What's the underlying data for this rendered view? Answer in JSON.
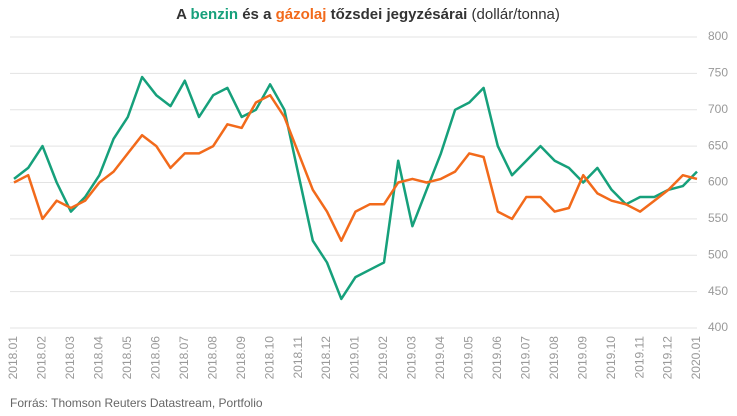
{
  "chart_data": {
    "type": "line",
    "title": [
      "A ",
      "benzin",
      " és a ",
      "gázolaj",
      " tőzsdei jegyzésárai",
      " (dollár/tonna)"
    ],
    "source": "Forrás: Thomson  Reuters Datastream, Portfolio",
    "x": [
      "2018.01",
      null,
      "2018.02",
      null,
      "2018.03",
      null,
      "2018.04",
      null,
      "2018.05",
      null,
      "2018.06",
      null,
      "2018.07",
      null,
      "2018.08",
      null,
      "2018.09",
      null,
      "2018.10",
      null,
      "2018.11",
      null,
      "2018.12",
      null,
      "2019.01",
      null,
      "2019.02",
      null,
      "2019.03",
      null,
      "2019.04",
      null,
      "2019.05",
      null,
      "2019.06",
      null,
      "2019.07",
      null,
      "2019.08",
      null,
      "2019.09",
      null,
      "2019.10",
      null,
      "2019.11",
      null,
      "2019.12",
      null,
      "2020.01"
    ],
    "series": [
      {
        "name": "benzin",
        "color": "#16a07b",
        "values": [
          605,
          620,
          650,
          600,
          560,
          580,
          610,
          660,
          690,
          745,
          720,
          705,
          740,
          690,
          720,
          730,
          690,
          700,
          735,
          700,
          610,
          520,
          490,
          440,
          470,
          480,
          490,
          630,
          540,
          590,
          640,
          700,
          710,
          730,
          650,
          610,
          630,
          650,
          630,
          620,
          600,
          620,
          590,
          570,
          580,
          580,
          590,
          595,
          615
        ]
      },
      {
        "name": "gázolaj",
        "color": "#f26a1b",
        "values": [
          600,
          610,
          550,
          575,
          565,
          575,
          600,
          615,
          640,
          665,
          650,
          620,
          640,
          640,
          650,
          680,
          675,
          710,
          720,
          690,
          640,
          590,
          560,
          520,
          560,
          570,
          570,
          600,
          605,
          600,
          605,
          615,
          640,
          635,
          560,
          550,
          580,
          580,
          560,
          565,
          610,
          585,
          575,
          570,
          560,
          575,
          590,
          610,
          605
        ]
      }
    ],
    "ylim": [
      400,
      800
    ],
    "yticks": [
      400,
      450,
      500,
      550,
      600,
      650,
      700,
      750,
      800
    ],
    "grid": true
  }
}
